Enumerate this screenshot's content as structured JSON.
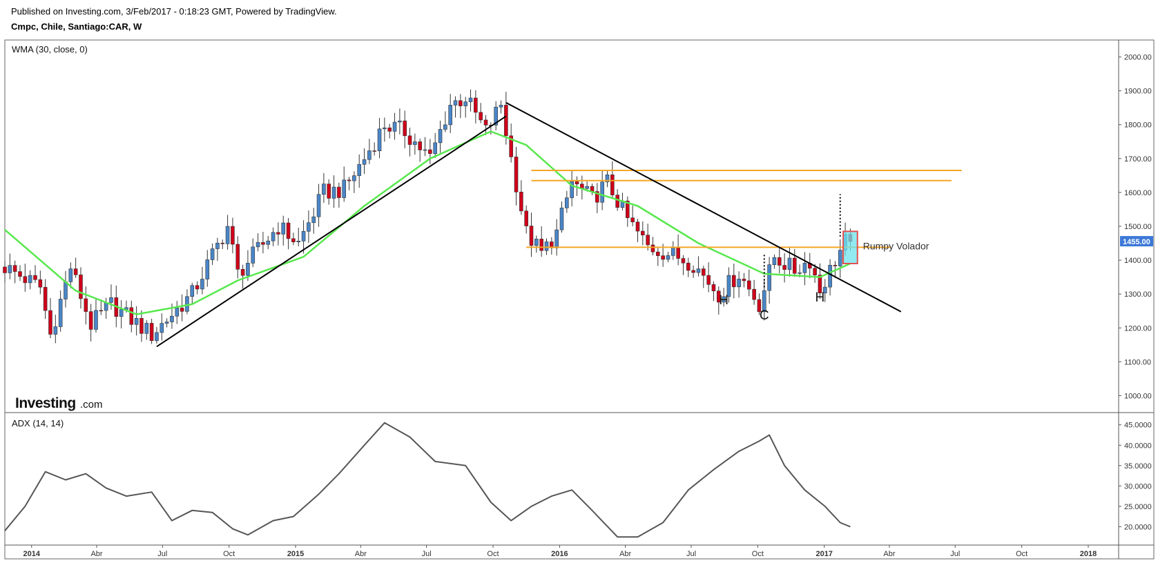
{
  "header": {
    "published": "Published on Investing.com, 3/Feb/2017 - 0:18:23 GMT, Powered by TradingView.",
    "symbol": "Cmpc, Chile, Santiago:CAR, W"
  },
  "logo": {
    "brand": "Investing",
    "suffix": ".com"
  },
  "colors": {
    "up": "#4a86c8",
    "down": "#d0021b",
    "wma": "#57e84d",
    "trend": "#000000",
    "level": "#f5a623",
    "adx": "#555555",
    "price_badge": "#3c78d8",
    "highlight_fill": "#6fe3ec",
    "highlight_border": "#e05050"
  },
  "chart_data": [
    {
      "type": "candlestick",
      "indicator": "WMA (30, close, 0)",
      "last_price_label": "1455.00",
      "ylim": [
        950,
        2050
      ],
      "yticks": [
        "1000.00",
        "1100.00",
        "1200.00",
        "1300.00",
        "1400.00",
        "1500.00",
        "1600.00",
        "1700.00",
        "1800.00",
        "1900.00",
        "2000.00"
      ],
      "x_axis": {
        "start": "2013-11-25",
        "end": "2018-02-12",
        "ticks": [
          {
            "label": "2014",
            "date": "2014-01-01",
            "year": true
          },
          {
            "label": "Abr",
            "date": "2014-04-01"
          },
          {
            "label": "Jul",
            "date": "2014-07-01"
          },
          {
            "label": "Oct",
            "date": "2014-10-01"
          },
          {
            "label": "2015",
            "date": "2015-01-01",
            "year": true
          },
          {
            "label": "Abr",
            "date": "2015-04-01"
          },
          {
            "label": "Jul",
            "date": "2015-07-01"
          },
          {
            "label": "Oct",
            "date": "2015-10-01"
          },
          {
            "label": "2016",
            "date": "2016-01-01",
            "year": true
          },
          {
            "label": "Abr",
            "date": "2016-04-01"
          },
          {
            "label": "Jul",
            "date": "2016-07-01"
          },
          {
            "label": "Oct",
            "date": "2016-10-01"
          },
          {
            "label": "2017",
            "date": "2017-01-01",
            "year": true
          },
          {
            "label": "Abr",
            "date": "2017-04-01"
          },
          {
            "label": "Jul",
            "date": "2017-07-01"
          },
          {
            "label": "Oct",
            "date": "2017-10-01"
          },
          {
            "label": "2018",
            "date": "2018-01-01",
            "year": true
          }
        ]
      },
      "close_anchors": [
        [
          "2013-11-25",
          1380
        ],
        [
          "2014-01-13",
          1320
        ],
        [
          "2014-01-27",
          1180
        ],
        [
          "2014-02-24",
          1380
        ],
        [
          "2014-03-24",
          1210
        ],
        [
          "2014-04-21",
          1270
        ],
        [
          "2014-06-16",
          1180
        ],
        [
          "2014-08-11",
          1300
        ],
        [
          "2014-09-29",
          1500
        ],
        [
          "2014-10-13",
          1360
        ],
        [
          "2014-12-08",
          1500
        ],
        [
          "2015-01-05",
          1450
        ],
        [
          "2015-02-09",
          1600
        ],
        [
          "2015-03-09",
          1610
        ],
        [
          "2015-04-06",
          1700
        ],
        [
          "2015-05-04",
          1800
        ],
        [
          "2015-06-01",
          1780
        ],
        [
          "2015-07-06",
          1700
        ],
        [
          "2015-08-03",
          1860
        ],
        [
          "2015-08-24",
          1880
        ],
        [
          "2015-09-21",
          1780
        ],
        [
          "2015-10-12",
          1860
        ],
        [
          "2015-10-26",
          1700
        ],
        [
          "2015-11-16",
          1480
        ],
        [
          "2015-12-07",
          1420
        ],
        [
          "2015-12-28",
          1480
        ],
        [
          "2016-01-18",
          1630
        ],
        [
          "2016-02-15",
          1580
        ],
        [
          "2016-03-07",
          1630
        ],
        [
          "2016-04-04",
          1520
        ],
        [
          "2016-05-02",
          1440
        ],
        [
          "2016-06-13",
          1410
        ],
        [
          "2016-07-04",
          1390
        ],
        [
          "2016-08-08",
          1300
        ],
        [
          "2016-09-05",
          1360
        ],
        [
          "2016-10-03",
          1270
        ],
        [
          "2016-10-24",
          1410
        ],
        [
          "2016-11-21",
          1370
        ],
        [
          "2016-12-12",
          1400
        ],
        [
          "2016-12-26",
          1310
        ],
        [
          "2017-01-16",
          1400
        ],
        [
          "2017-01-30",
          1455
        ]
      ],
      "wma_anchors": [
        [
          "2013-11-25",
          1490
        ],
        [
          "2014-03-03",
          1310
        ],
        [
          "2014-05-26",
          1240
        ],
        [
          "2014-08-11",
          1270
        ],
        [
          "2014-10-13",
          1340
        ],
        [
          "2015-01-12",
          1410
        ],
        [
          "2015-04-06",
          1560
        ],
        [
          "2015-07-06",
          1700
        ],
        [
          "2015-09-28",
          1780
        ],
        [
          "2015-11-16",
          1740
        ],
        [
          "2016-01-18",
          1620
        ],
        [
          "2016-04-18",
          1560
        ],
        [
          "2016-07-11",
          1450
        ],
        [
          "2016-10-10",
          1360
        ],
        [
          "2016-12-26",
          1350
        ],
        [
          "2017-02-06",
          1390
        ]
      ],
      "trendlines": [
        {
          "from": [
            "2014-06-23",
            1145
          ],
          "to": [
            "2015-10-19",
            1825
          ]
        },
        {
          "from": [
            "2015-10-19",
            1865
          ],
          "to": [
            "2017-04-17",
            1248
          ]
        }
      ],
      "horizontal_levels": [
        {
          "from": "2015-11-23",
          "to": "2017-07-10",
          "value": 1665
        },
        {
          "from": "2015-11-23",
          "to": "2017-06-26",
          "value": 1635
        },
        {
          "from": "2015-11-16",
          "to": "2017-04-03",
          "value": 1438
        }
      ],
      "dotted_markers": [
        {
          "date": "2016-10-10",
          "from": 1320,
          "to": 1420
        },
        {
          "date": "2017-01-23",
          "from": 1470,
          "to": 1595
        }
      ],
      "annotations": [
        {
          "text": "H",
          "date": "2016-08-15",
          "value": 1270
        },
        {
          "text": "C",
          "date": "2016-10-10",
          "value": 1225
        },
        {
          "text": "H",
          "date": "2016-12-26",
          "value": 1278
        }
      ],
      "highlight_box": {
        "from": "2017-01-30",
        "to": "2017-02-13",
        "top": 1485,
        "bottom": 1390,
        "label": "Rumpy Volador"
      }
    },
    {
      "type": "line",
      "indicator": "ADX (14, 14)",
      "ylim": [
        15.5,
        48
      ],
      "yticks": [
        "20.0000",
        "25.0000",
        "30.0000",
        "35.0000",
        "40.0000",
        "45.0000"
      ],
      "series": [
        {
          "values": [
            [
              "2013-11-25",
              19
            ],
            [
              "2013-12-23",
              25
            ],
            [
              "2014-01-20",
              33.5
            ],
            [
              "2014-02-17",
              31.5
            ],
            [
              "2014-03-17",
              33
            ],
            [
              "2014-04-14",
              29.5
            ],
            [
              "2014-05-12",
              27.5
            ],
            [
              "2014-06-16",
              28.5
            ],
            [
              "2014-07-14",
              21.5
            ],
            [
              "2014-08-11",
              24
            ],
            [
              "2014-09-08",
              23.5
            ],
            [
              "2014-10-06",
              19.5
            ],
            [
              "2014-10-27",
              18
            ],
            [
              "2014-12-01",
              21.5
            ],
            [
              "2014-12-29",
              22.5
            ],
            [
              "2015-02-02",
              28
            ],
            [
              "2015-03-02",
              33
            ],
            [
              "2015-04-06",
              40
            ],
            [
              "2015-05-04",
              45.5
            ],
            [
              "2015-06-08",
              42
            ],
            [
              "2015-07-13",
              36
            ],
            [
              "2015-08-24",
              35
            ],
            [
              "2015-09-28",
              26
            ],
            [
              "2015-10-26",
              21.5
            ],
            [
              "2015-11-23",
              25
            ],
            [
              "2015-12-21",
              27.5
            ],
            [
              "2016-01-18",
              29
            ],
            [
              "2016-02-15",
              24
            ],
            [
              "2016-03-21",
              17.5
            ],
            [
              "2016-04-18",
              17.5
            ],
            [
              "2016-05-23",
              21
            ],
            [
              "2016-06-27",
              29
            ],
            [
              "2016-08-01",
              34
            ],
            [
              "2016-09-05",
              38.5
            ],
            [
              "2016-10-03",
              41
            ],
            [
              "2016-10-17",
              42.5
            ],
            [
              "2016-11-07",
              35
            ],
            [
              "2016-12-05",
              29
            ],
            [
              "2017-01-02",
              25
            ],
            [
              "2017-01-23",
              21
            ],
            [
              "2017-02-06",
              20
            ]
          ]
        }
      ]
    }
  ]
}
